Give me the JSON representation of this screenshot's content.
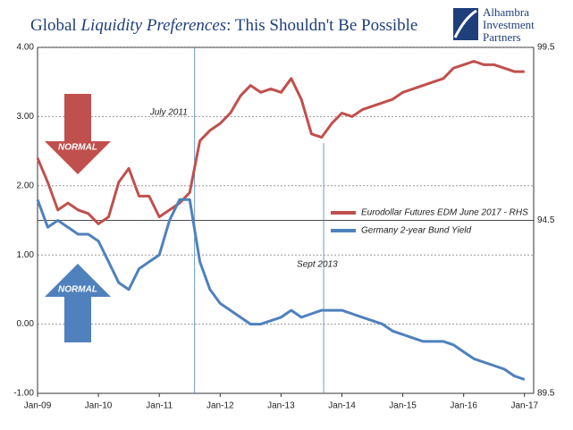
{
  "chart_data": {
    "type": "line",
    "title": [
      "Global ",
      "Liquidity Preferences",
      ": This Shouldn't Be Possible"
    ],
    "logo": [
      "Alhambra",
      "Investment",
      "Partners"
    ],
    "arrow_labels": [
      "NORMAL",
      "NORMAL"
    ],
    "x": [
      2009,
      2009.167,
      2009.333,
      2009.5,
      2009.667,
      2009.833,
      2010,
      2010.167,
      2010.333,
      2010.5,
      2010.667,
      2010.833,
      2011,
      2011.167,
      2011.333,
      2011.5,
      2011.667,
      2011.833,
      2012,
      2012.167,
      2012.333,
      2012.5,
      2012.667,
      2012.833,
      2013,
      2013.167,
      2013.333,
      2013.5,
      2013.667,
      2013.833,
      2014,
      2014.167,
      2014.333,
      2014.5,
      2014.667,
      2014.833,
      2015,
      2015.167,
      2015.333,
      2015.5,
      2015.667,
      2015.833,
      2016,
      2016.167,
      2016.333,
      2016.5,
      2016.667,
      2016.833,
      2017
    ],
    "series": [
      {
        "name": "Eurodollar Futures EDM June 2017 - RHS",
        "color": "#c0504d",
        "axis": "y2",
        "values": [
          96.3,
          95.6,
          94.8,
          95.0,
          94.8,
          94.7,
          94.4,
          94.6,
          95.6,
          96.0,
          95.2,
          95.2,
          94.6,
          94.8,
          95.0,
          95.3,
          96.8,
          97.1,
          97.3,
          97.6,
          98.1,
          98.4,
          98.2,
          98.3,
          98.2,
          98.6,
          98.0,
          97.0,
          96.9,
          97.3,
          97.6,
          97.5,
          97.7,
          97.8,
          97.9,
          98.0,
          98.2,
          98.3,
          98.4,
          98.5,
          98.6,
          98.9,
          99.0,
          99.1,
          99.0,
          99.0,
          98.9,
          98.8,
          98.8
        ]
      },
      {
        "name": "Germany 2-year Bund Yield",
        "color": "#4f81bd",
        "values": [
          1.8,
          1.4,
          1.5,
          1.4,
          1.3,
          1.3,
          1.2,
          0.9,
          0.6,
          0.5,
          0.8,
          0.9,
          1.0,
          1.5,
          1.8,
          1.8,
          0.9,
          0.5,
          0.3,
          0.2,
          0.1,
          0.0,
          0.0,
          0.05,
          0.1,
          0.2,
          0.1,
          0.15,
          0.2,
          0.2,
          0.2,
          0.15,
          0.1,
          0.05,
          0.0,
          -0.1,
          -0.15,
          -0.2,
          -0.25,
          -0.25,
          -0.25,
          -0.3,
          -0.4,
          -0.5,
          -0.55,
          -0.6,
          -0.65,
          -0.75,
          -0.8
        ]
      }
    ],
    "annotations": [
      {
        "text": "July 2011",
        "x": 2011.58
      },
      {
        "text": "Sept 2013",
        "x": 2013.7
      }
    ],
    "xlim": [
      2009,
      2017.15
    ],
    "xticks": [
      {
        "value": 2009,
        "label": "Jan-09"
      },
      {
        "value": 2010,
        "label": "Jan-10"
      },
      {
        "value": 2011,
        "label": "Jan-11"
      },
      {
        "value": 2012,
        "label": "Jan-12"
      },
      {
        "value": 2013,
        "label": "Jan-13"
      },
      {
        "value": 2014,
        "label": "Jan-14"
      },
      {
        "value": 2015,
        "label": "Jan-15"
      },
      {
        "value": 2016,
        "label": "Jan-16"
      },
      {
        "value": 2017,
        "label": "Jan-17"
      }
    ],
    "ylim": [
      -1,
      4
    ],
    "yticks": [
      {
        "value": -1,
        "label": "-1.00"
      },
      {
        "value": 0,
        "label": "0.00"
      },
      {
        "value": 1,
        "label": "1.00"
      },
      {
        "value": 2,
        "label": "2.00"
      },
      {
        "value": 3,
        "label": "3.00"
      },
      {
        "value": 4,
        "label": "4.00"
      }
    ],
    "y2lim": [
      89.5,
      99.5
    ],
    "y2ticks": [
      89.5,
      94.5,
      99.5
    ],
    "grid": true,
    "legend": "center right"
  }
}
